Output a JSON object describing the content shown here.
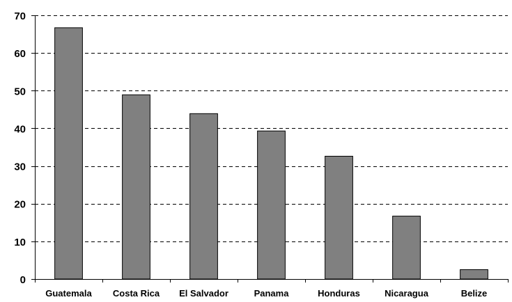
{
  "chart_data": {
    "type": "bar",
    "title": "",
    "xlabel": "",
    "ylabel": "",
    "categories": [
      "Guatemala",
      "Costa Rica",
      "El Salvador",
      "Panama",
      "Honduras",
      "Nicaragua",
      "Belize"
    ],
    "values": [
      66.7,
      48.9,
      43.9,
      39.3,
      32.6,
      16.7,
      2.5
    ],
    "ylim": [
      0,
      70
    ],
    "yticks": [
      0,
      10,
      20,
      30,
      40,
      50,
      60,
      70
    ],
    "grid": true,
    "grid_style": "dashed",
    "legend": "none",
    "colors": {
      "bar_fill": "#808080",
      "bar_stroke": "#000000",
      "grid": "#000000",
      "axis": "#000000",
      "text": "#000000"
    }
  }
}
